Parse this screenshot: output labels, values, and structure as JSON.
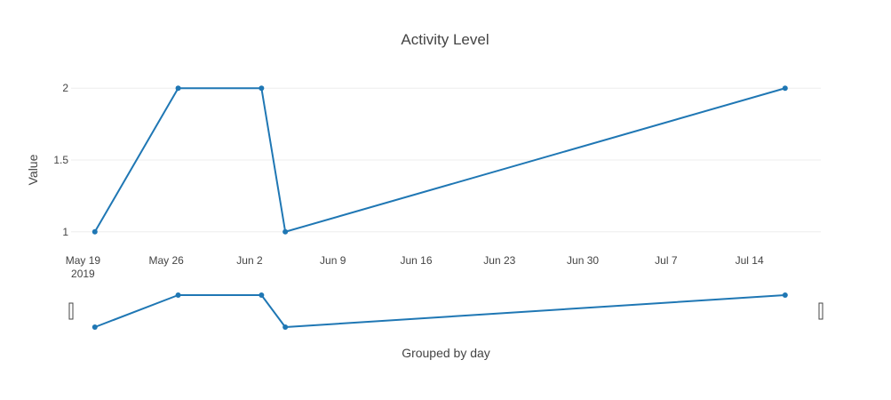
{
  "chart_data": {
    "type": "line",
    "title": "Activity Level",
    "ylabel": "Value",
    "xlabel": "Grouped by day",
    "x_axis_type": "date",
    "xlim": [
      "2019-05-18",
      "2019-07-20"
    ],
    "ylim": [
      0.85,
      2.15
    ],
    "x_ticks": [
      {
        "date": "2019-05-19",
        "label": "May 19",
        "sublabel": "2019"
      },
      {
        "date": "2019-05-26",
        "label": "May 26"
      },
      {
        "date": "2019-06-02",
        "label": "Jun 2"
      },
      {
        "date": "2019-06-09",
        "label": "Jun 9"
      },
      {
        "date": "2019-06-16",
        "label": "Jun 16"
      },
      {
        "date": "2019-06-23",
        "label": "Jun 23"
      },
      {
        "date": "2019-06-30",
        "label": "Jun 30"
      },
      {
        "date": "2019-07-07",
        "label": "Jul 7"
      },
      {
        "date": "2019-07-14",
        "label": "Jul 14"
      }
    ],
    "y_ticks": [
      {
        "value": 1,
        "label": "1"
      },
      {
        "value": 1.5,
        "label": "1.5"
      },
      {
        "value": 2,
        "label": "2"
      }
    ],
    "grid": true,
    "rangeslider": true,
    "series": [
      {
        "color": "#1f77b4",
        "x": [
          "2019-05-20",
          "2019-05-27",
          "2019-06-03",
          "2019-06-05",
          "2019-07-17"
        ],
        "y": [
          1,
          2,
          2,
          1,
          2
        ]
      }
    ]
  }
}
